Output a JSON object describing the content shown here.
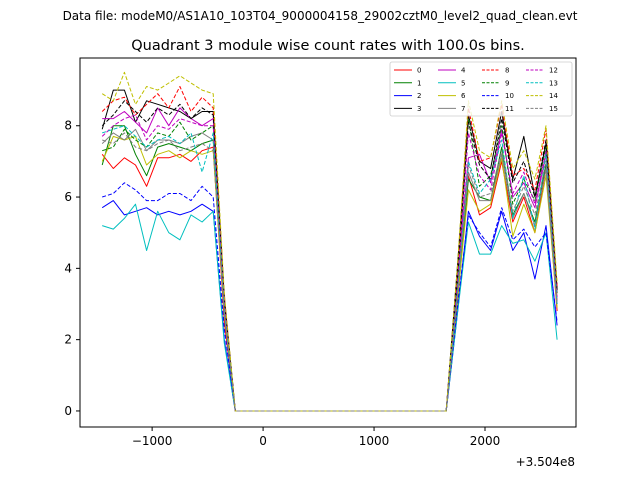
{
  "figure": {
    "suptitle": "Data file: modeM0/AS1A10_103T04_9000004158_29002cztM0_level2_quad_clean.evt"
  },
  "chart_data": {
    "type": "line",
    "title": "Quadrant 3 module wise count rates with 100.0s bins.",
    "xlabel": "",
    "ylabel": "",
    "x_offset_label": "+3.504e8",
    "xlim": [
      -1650,
      2820
    ],
    "ylim": [
      -0.45,
      9.9
    ],
    "x_ticks": [
      -1000,
      0,
      1000,
      2000
    ],
    "x_tick_labels": [
      "−1000",
      "0",
      "1000",
      "2000"
    ],
    "y_ticks": [
      0,
      2,
      4,
      6,
      8
    ],
    "y_tick_labels": [
      "0",
      "2",
      "4",
      "6",
      "8"
    ],
    "grid": false,
    "legend_position": "top-right",
    "legend_columns": 4,
    "x": [
      -1450,
      -1350,
      -1250,
      -1150,
      -1050,
      -950,
      -850,
      -750,
      -650,
      -550,
      -450,
      -350,
      -250,
      -150,
      -50,
      50,
      150,
      250,
      350,
      450,
      550,
      650,
      750,
      850,
      950,
      1050,
      1150,
      1250,
      1350,
      1450,
      1550,
      1650,
      1750,
      1850,
      1950,
      2050,
      2150,
      2250,
      2350,
      2450,
      2550,
      2650
    ],
    "series": [
      {
        "name": "0",
        "color": "#ff0000",
        "dash": "solid",
        "values": [
          7.2,
          6.8,
          7.1,
          6.9,
          6.3,
          7.1,
          7.1,
          7.2,
          7.0,
          7.3,
          7.4,
          2.5,
          0,
          0,
          0,
          0,
          0,
          0,
          0,
          0,
          0,
          0,
          0,
          0,
          0,
          0,
          0,
          0,
          0,
          0,
          0,
          0,
          3.0,
          6.6,
          5.5,
          5.7,
          7.0,
          5.3,
          6.0,
          5.0,
          6.8,
          2.8
        ]
      },
      {
        "name": "1",
        "color": "#008000",
        "dash": "solid",
        "values": [
          6.9,
          8.0,
          8.0,
          7.2,
          6.6,
          7.4,
          7.5,
          7.4,
          7.3,
          7.5,
          7.6,
          2.8,
          0,
          0,
          0,
          0,
          0,
          0,
          0,
          0,
          0,
          0,
          0,
          0,
          0,
          0,
          0,
          0,
          0,
          0,
          0,
          0,
          3.2,
          6.5,
          6.0,
          5.9,
          7.4,
          5.5,
          6.1,
          5.3,
          6.9,
          3.0
        ]
      },
      {
        "name": "2",
        "color": "#0000ff",
        "dash": "solid",
        "values": [
          5.7,
          5.9,
          5.5,
          5.6,
          5.7,
          5.5,
          5.6,
          5.5,
          5.6,
          5.8,
          5.6,
          2.0,
          0,
          0,
          0,
          0,
          0,
          0,
          0,
          0,
          0,
          0,
          0,
          0,
          0,
          0,
          0,
          0,
          0,
          0,
          0,
          0,
          2.7,
          5.6,
          4.9,
          4.5,
          5.6,
          4.5,
          5.0,
          3.7,
          5.2,
          2.4
        ]
      },
      {
        "name": "3",
        "color": "#000000",
        "dash": "solid",
        "values": [
          7.9,
          9.0,
          9.0,
          8.1,
          8.7,
          8.6,
          8.5,
          8.4,
          8.2,
          8.4,
          8.4,
          3.2,
          0,
          0,
          0,
          0,
          0,
          0,
          0,
          0,
          0,
          0,
          0,
          0,
          0,
          0,
          0,
          0,
          0,
          0,
          0,
          0,
          4.0,
          8.3,
          7.0,
          6.8,
          8.4,
          6.5,
          7.7,
          6.0,
          7.5,
          3.4
        ]
      },
      {
        "name": "4",
        "color": "#bf00bf",
        "dash": "solid",
        "values": [
          8.2,
          8.2,
          8.4,
          8.1,
          7.8,
          8.5,
          8.0,
          8.5,
          8.2,
          8.0,
          8.2,
          3.0,
          0,
          0,
          0,
          0,
          0,
          0,
          0,
          0,
          0,
          0,
          0,
          0,
          0,
          0,
          0,
          0,
          0,
          0,
          0,
          0,
          3.6,
          7.1,
          7.2,
          6.4,
          7.9,
          6.0,
          6.4,
          5.7,
          7.2,
          3.1
        ]
      },
      {
        "name": "5",
        "color": "#00bfbf",
        "dash": "solid",
        "values": [
          5.2,
          5.1,
          5.4,
          5.8,
          4.5,
          5.6,
          5.0,
          4.8,
          5.5,
          5.3,
          5.6,
          1.9,
          0,
          0,
          0,
          0,
          0,
          0,
          0,
          0,
          0,
          0,
          0,
          0,
          0,
          0,
          0,
          0,
          0,
          0,
          0,
          0,
          2.7,
          5.3,
          4.4,
          4.4,
          5.2,
          4.7,
          4.8,
          4.2,
          5.0,
          2.0
        ]
      },
      {
        "name": "6",
        "color": "#bfbf00",
        "dash": "solid",
        "values": [
          7.0,
          7.7,
          7.6,
          7.7,
          6.9,
          7.2,
          7.3,
          7.1,
          7.3,
          7.2,
          7.3,
          2.7,
          0,
          0,
          0,
          0,
          0,
          0,
          0,
          0,
          0,
          0,
          0,
          0,
          0,
          0,
          0,
          0,
          0,
          0,
          0,
          0,
          3.1,
          6.2,
          5.6,
          5.8,
          7.1,
          4.9,
          5.8,
          5.0,
          6.6,
          2.9
        ]
      },
      {
        "name": "7",
        "color": "#808080",
        "dash": "solid",
        "values": [
          7.5,
          7.8,
          7.6,
          7.9,
          7.3,
          7.6,
          7.6,
          7.5,
          7.7,
          7.8,
          7.6,
          2.9,
          0,
          0,
          0,
          0,
          0,
          0,
          0,
          0,
          0,
          0,
          0,
          0,
          0,
          0,
          0,
          0,
          0,
          0,
          0,
          0,
          3.3,
          6.7,
          5.9,
          5.9,
          7.2,
          5.4,
          6.1,
          5.2,
          6.8,
          3.0
        ]
      },
      {
        "name": "8",
        "color": "#ff0000",
        "dash": "dashed",
        "values": [
          8.4,
          8.7,
          8.8,
          8.3,
          8.6,
          8.9,
          8.5,
          9.1,
          8.4,
          8.8,
          8.5,
          3.2,
          0,
          0,
          0,
          0,
          0,
          0,
          0,
          0,
          0,
          0,
          0,
          0,
          0,
          0,
          0,
          0,
          0,
          0,
          0,
          0,
          3.8,
          8.5,
          7.0,
          7.1,
          8.6,
          6.6,
          6.8,
          6.2,
          7.9,
          3.5
        ]
      },
      {
        "name": "9",
        "color": "#008000",
        "dash": "dashed",
        "values": [
          7.3,
          7.4,
          7.9,
          7.6,
          7.4,
          7.8,
          7.7,
          8.1,
          7.6,
          7.8,
          8.0,
          3.0,
          0,
          0,
          0,
          0,
          0,
          0,
          0,
          0,
          0,
          0,
          0,
          0,
          0,
          0,
          0,
          0,
          0,
          0,
          0,
          0,
          3.5,
          8.2,
          6.3,
          6.6,
          8.0,
          5.8,
          6.5,
          5.9,
          7.4,
          3.3
        ]
      },
      {
        "name": "10",
        "color": "#0000ff",
        "dash": "dashed",
        "values": [
          6.0,
          6.1,
          6.4,
          6.2,
          5.9,
          5.9,
          6.1,
          6.1,
          5.9,
          6.3,
          6.0,
          2.3,
          0,
          0,
          0,
          0,
          0,
          0,
          0,
          0,
          0,
          0,
          0,
          0,
          0,
          0,
          0,
          0,
          0,
          0,
          0,
          0,
          2.9,
          5.5,
          5.0,
          4.6,
          5.7,
          4.8,
          5.1,
          4.6,
          5.0,
          2.5
        ]
      },
      {
        "name": "11",
        "color": "#000000",
        "dash": "dashed",
        "values": [
          8.0,
          8.3,
          8.7,
          8.4,
          8.1,
          8.5,
          8.3,
          8.6,
          8.2,
          8.5,
          8.3,
          3.1,
          0,
          0,
          0,
          0,
          0,
          0,
          0,
          0,
          0,
          0,
          0,
          0,
          0,
          0,
          0,
          0,
          0,
          0,
          0,
          0,
          3.7,
          8.1,
          6.9,
          6.5,
          8.2,
          6.4,
          7.0,
          6.0,
          7.6,
          3.4
        ]
      },
      {
        "name": "12",
        "color": "#bf00bf",
        "dash": "dashed",
        "values": [
          7.7,
          8.0,
          8.2,
          8.3,
          7.6,
          8.0,
          7.9,
          8.2,
          8.1,
          8.0,
          8.0,
          3.0,
          0,
          0,
          0,
          0,
          0,
          0,
          0,
          0,
          0,
          0,
          0,
          0,
          0,
          0,
          0,
          0,
          0,
          0,
          0,
          0,
          3.5,
          7.8,
          6.6,
          6.2,
          7.8,
          6.1,
          6.7,
          5.8,
          7.3,
          3.2
        ]
      },
      {
        "name": "13",
        "color": "#00bfbf",
        "dash": "dashed",
        "values": [
          7.8,
          7.9,
          8.0,
          7.7,
          7.4,
          7.6,
          7.7,
          7.5,
          7.8,
          6.7,
          7.8,
          2.8,
          0,
          0,
          0,
          0,
          0,
          0,
          0,
          0,
          0,
          0,
          0,
          0,
          0,
          0,
          0,
          0,
          0,
          0,
          0,
          0,
          3.3,
          7.0,
          6.1,
          6.5,
          7.6,
          5.4,
          6.6,
          5.1,
          7.2,
          3.0
        ]
      },
      {
        "name": "14",
        "color": "#bfbf00",
        "dash": "dashed",
        "values": [
          8.9,
          8.7,
          9.5,
          8.6,
          9.1,
          9.0,
          9.2,
          9.4,
          9.2,
          9.0,
          8.9,
          3.3,
          0,
          0,
          0,
          0,
          0,
          0,
          0,
          0,
          0,
          0,
          0,
          0,
          0,
          0,
          0,
          0,
          0,
          0,
          0,
          0,
          4.0,
          8.7,
          7.3,
          7.1,
          8.7,
          6.8,
          7.3,
          6.5,
          8.0,
          3.6
        ]
      },
      {
        "name": "15",
        "color": "#808080",
        "dash": "dashed",
        "values": [
          7.6,
          7.5,
          7.8,
          7.4,
          7.3,
          7.5,
          7.6,
          7.3,
          7.4,
          7.5,
          7.3,
          2.8,
          0,
          0,
          0,
          0,
          0,
          0,
          0,
          0,
          0,
          0,
          0,
          0,
          0,
          0,
          0,
          0,
          0,
          0,
          0,
          0,
          3.2,
          6.9,
          6.0,
          6.1,
          7.3,
          5.6,
          6.3,
          5.5,
          7.0,
          3.0
        ]
      }
    ]
  }
}
